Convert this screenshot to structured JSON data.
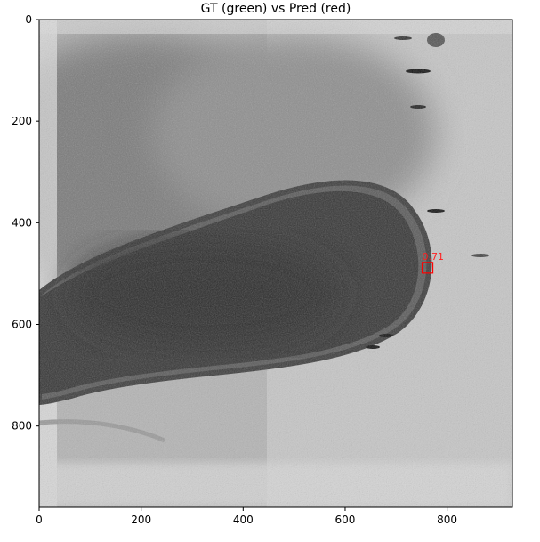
{
  "chart_data": {
    "type": "image",
    "title": "GT (green) vs Pred (red)",
    "xlim": [
      0,
      928
    ],
    "ylim": [
      960,
      0
    ],
    "x_ticks": [
      0,
      200,
      400,
      600,
      800
    ],
    "y_ticks": [
      0,
      200,
      400,
      600,
      800
    ],
    "detections": [
      {
        "source": "Pred",
        "color": "#ff0000",
        "label": "0.71",
        "x": [
          751,
          772
        ],
        "y": [
          478,
          499
        ]
      }
    ],
    "colors": {
      "frame": "#000000",
      "pred_box": "#ff0000"
    }
  }
}
